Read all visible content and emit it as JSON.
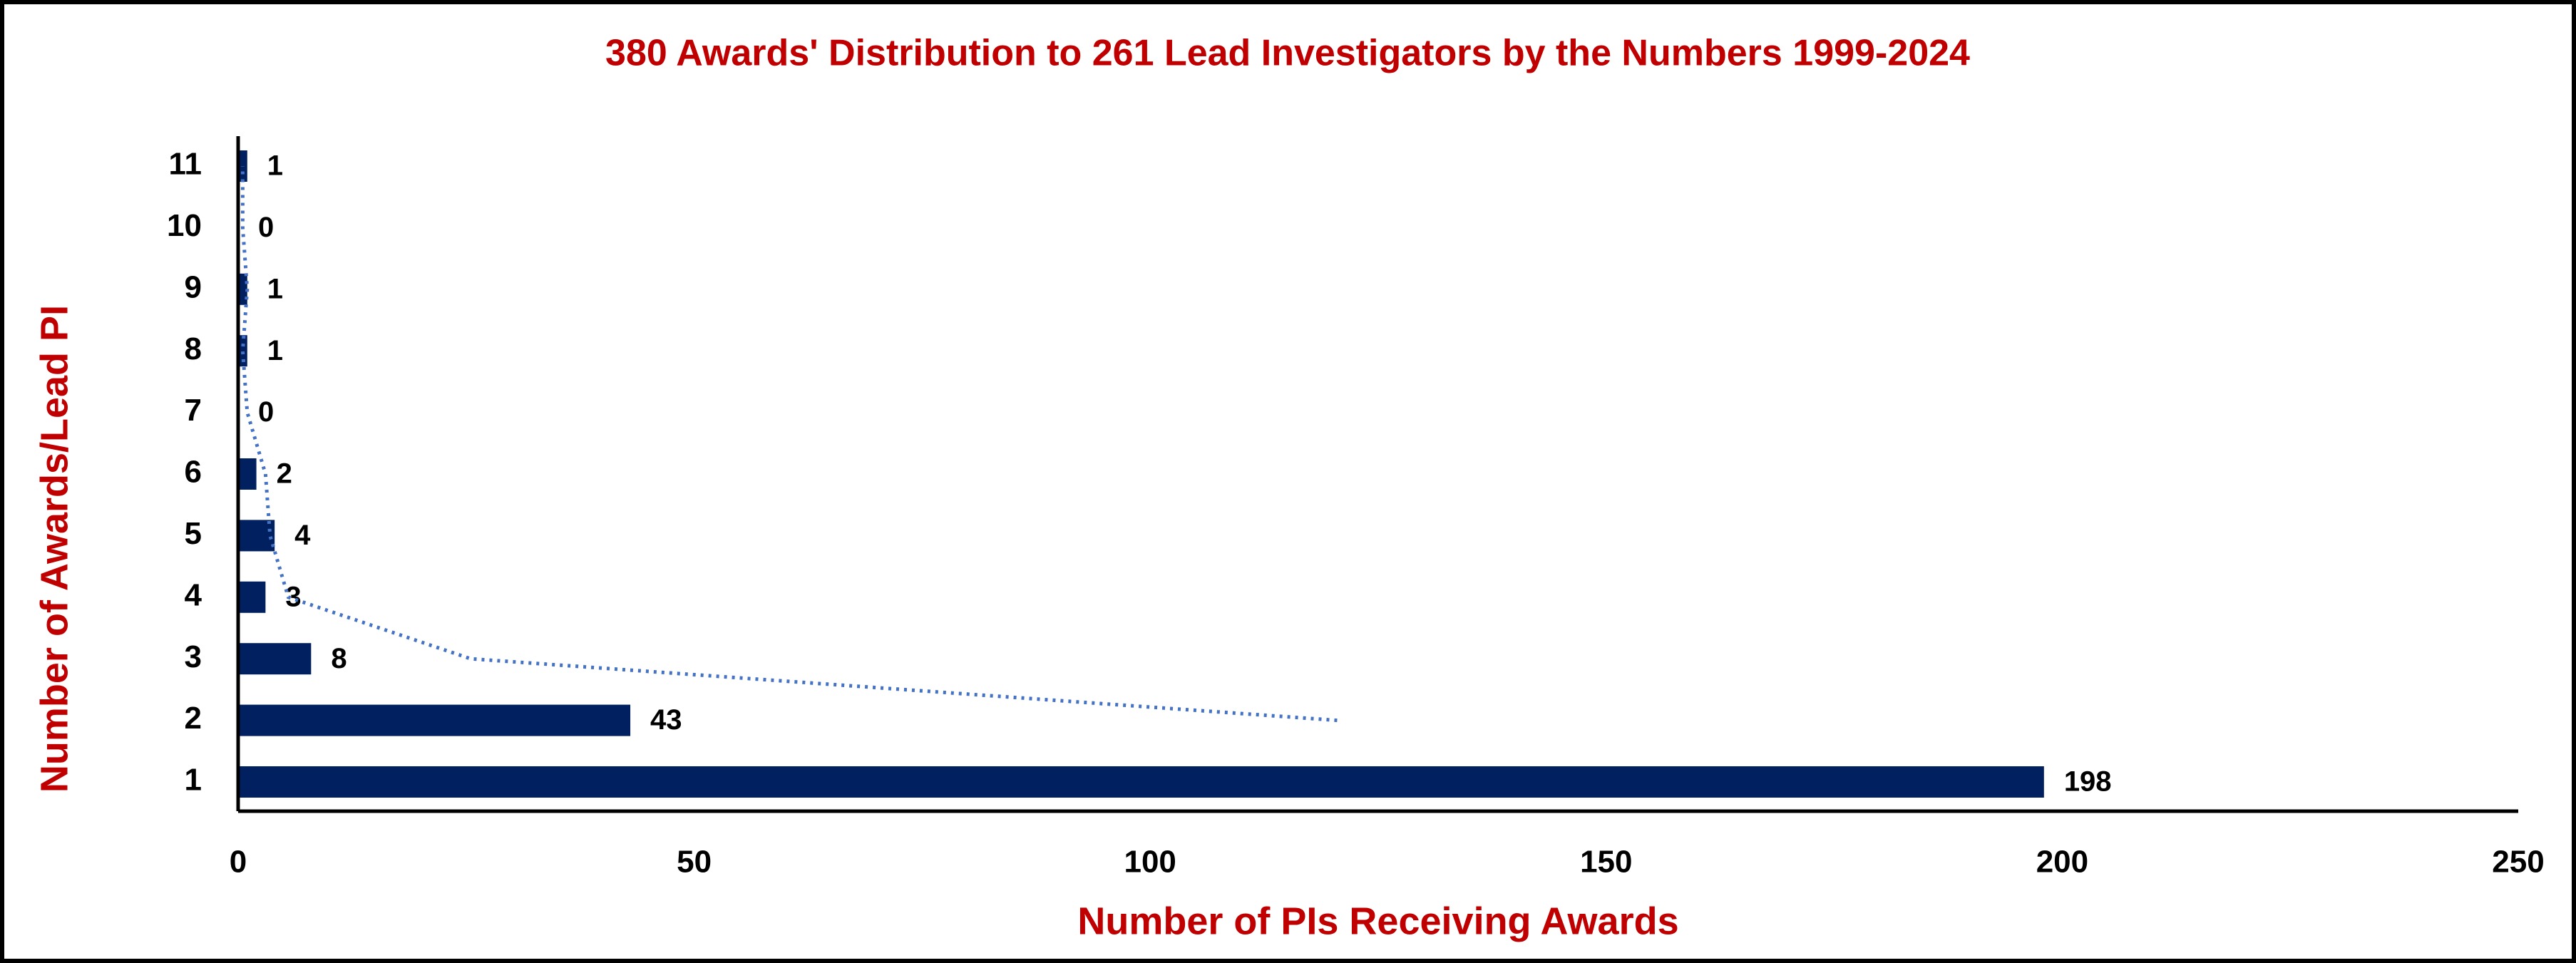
{
  "chart_data": {
    "type": "hbar",
    "title": "380 Awards' Distribution to 261 Lead Investigators by the Numbers 1999-2024",
    "x_label": "Number of PIs Receiving Awards",
    "y_label": "Number of Awards/Lead PI",
    "categories": [
      "1",
      "2",
      "3",
      "4",
      "5",
      "6",
      "7",
      "8",
      "9",
      "10",
      "11"
    ],
    "values": [
      198,
      43,
      8,
      3,
      4,
      2,
      0,
      1,
      1,
      0,
      1
    ],
    "color": "#002060",
    "xlim": [
      0,
      250
    ],
    "xticks": [
      0,
      50,
      100,
      150,
      200,
      250
    ],
    "grid": false,
    "trendline": {
      "type": "moving-average",
      "period": 2,
      "color": "#4472c4",
      "values": [
        null,
        120.5,
        25.5,
        5.5,
        3.5,
        3,
        1,
        0.5,
        1,
        0.5,
        0.5
      ]
    }
  }
}
